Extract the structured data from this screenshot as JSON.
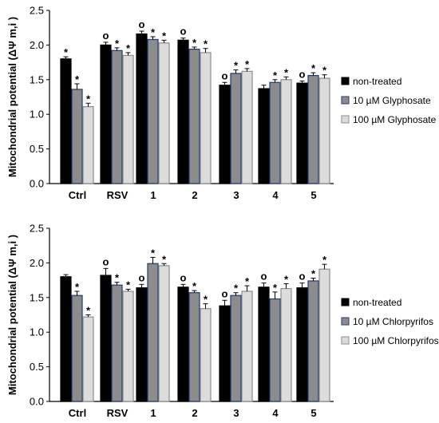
{
  "colors": {
    "black": "#000000",
    "grey": "#8c8c8c",
    "light": "#dcdcdc",
    "navy": "#1f3b73"
  },
  "chart_data": [
    {
      "type": "bar",
      "ylabel": "Mitochondrial potential (ΔΨ m,i )",
      "ylim": [
        0,
        2.5
      ],
      "yticks": [
        "0.0",
        "0.5",
        "1.0",
        "1.5",
        "2.0",
        "2.5"
      ],
      "categories": [
        "Ctrl",
        "RSV",
        "1",
        "2",
        "3",
        "4",
        "5"
      ],
      "legend_position": "right",
      "series": [
        {
          "name": "non-treated",
          "values": [
            1.8,
            2.0,
            2.16,
            2.07,
            1.42,
            1.37,
            1.45
          ],
          "errors": [
            0.03,
            0.04,
            0.04,
            0.03,
            0.04,
            0.05,
            0.03
          ]
        },
        {
          "name": "10 µM Glyphosate",
          "values": [
            1.36,
            1.92,
            2.08,
            1.94,
            1.59,
            1.46,
            1.56
          ],
          "errors": [
            0.08,
            0.04,
            0.04,
            0.03,
            0.05,
            0.04,
            0.04
          ]
        },
        {
          "name": "100 µM Glyphosate",
          "values": [
            1.11,
            1.85,
            2.03,
            1.89,
            1.62,
            1.5,
            1.52
          ],
          "errors": [
            0.05,
            0.04,
            0.04,
            0.06,
            0.04,
            0.04,
            0.05
          ]
        }
      ],
      "markers": [
        [
          "",
          "",
          "",
          "",
          "",
          "",
          ""
        ],
        [
          "*",
          "o",
          "o",
          "o",
          "o",
          "",
          "o"
        ],
        [
          "*",
          "*",
          "*",
          "*",
          "*",
          "*",
          "*"
        ],
        [
          "*",
          "*",
          "*",
          "*",
          "*",
          "*",
          "*"
        ]
      ]
    },
    {
      "type": "bar",
      "ylabel": "Mitochondrial potential (ΔΨ m,i )",
      "ylim": [
        0,
        2.5
      ],
      "yticks": [
        "0.0",
        "0.5",
        "1.0",
        "1.5",
        "2.0",
        "2.5"
      ],
      "categories": [
        "Ctrl",
        "RSV",
        "1",
        "2",
        "3",
        "4",
        "5"
      ],
      "legend_position": "right",
      "series": [
        {
          "name": "non-treated",
          "values": [
            1.8,
            1.82,
            1.64,
            1.65,
            1.38,
            1.65,
            1.64
          ],
          "errors": [
            0.03,
            0.1,
            0.05,
            0.04,
            0.08,
            0.06,
            0.07
          ]
        },
        {
          "name": "10 µM Chlorpyrifos",
          "values": [
            1.53,
            1.68,
            1.99,
            1.57,
            1.53,
            1.48,
            1.74
          ],
          "errors": [
            0.06,
            0.04,
            0.09,
            0.03,
            0.04,
            0.1,
            0.04
          ]
        },
        {
          "name": "100 µM Chlorpyrifos",
          "values": [
            1.22,
            1.59,
            1.96,
            1.34,
            1.59,
            1.63,
            1.91
          ],
          "errors": [
            0.03,
            0.03,
            0.03,
            0.07,
            0.08,
            0.07,
            0.07
          ]
        }
      ],
      "markers": [
        [
          "",
          "o",
          "o",
          "o",
          "o",
          "o",
          "o"
        ],
        [
          "*",
          "*",
          "*",
          "*",
          "*",
          "*",
          "*"
        ],
        [
          "*",
          "*",
          "*",
          "*",
          "*",
          "*",
          "*"
        ]
      ]
    }
  ]
}
